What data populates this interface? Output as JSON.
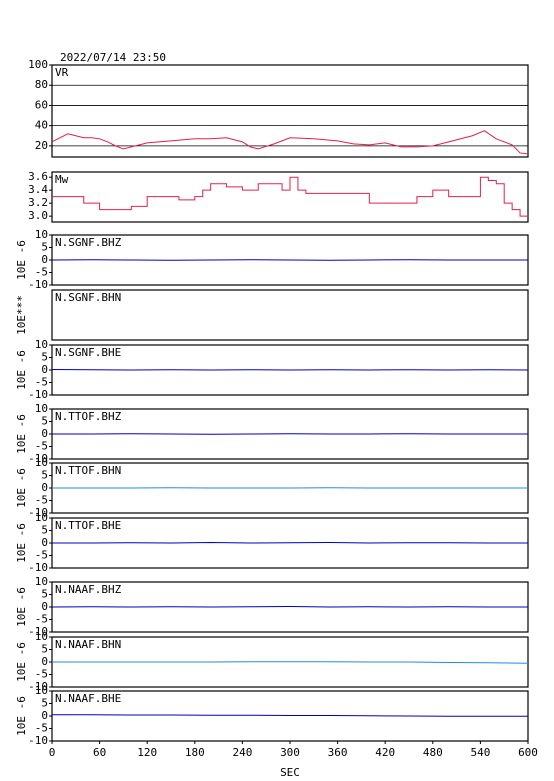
{
  "chart_data": [
    {
      "type": "line",
      "title": "2022/07/14 23:50",
      "label": "VR",
      "color": "#e0204a",
      "x": [
        0,
        10,
        20,
        30,
        40,
        50,
        60,
        70,
        80,
        90,
        100,
        120,
        150,
        180,
        200,
        220,
        240,
        250,
        260,
        280,
        300,
        330,
        360,
        380,
        400,
        420,
        440,
        460,
        480,
        500,
        520,
        530,
        545,
        560,
        570,
        580,
        590,
        600
      ],
      "values": [
        24,
        28,
        32,
        30,
        28,
        28,
        27,
        24,
        20,
        17,
        19,
        23,
        25,
        27,
        27,
        28,
        24,
        19,
        17,
        22,
        28,
        27,
        25,
        22,
        21,
        23,
        19,
        19,
        20,
        24,
        28,
        30,
        35,
        27,
        24,
        21,
        13,
        12
      ],
      "ylim": [
        9,
        100
      ],
      "yticks": [
        20,
        40,
        60,
        80,
        100
      ],
      "grid": true
    },
    {
      "type": "step",
      "label": "Mw",
      "color": "#e0204a",
      "x": [
        0,
        20,
        40,
        60,
        80,
        100,
        120,
        140,
        160,
        180,
        190,
        200,
        220,
        240,
        260,
        280,
        290,
        300,
        310,
        320,
        340,
        360,
        380,
        400,
        420,
        440,
        460,
        480,
        500,
        520,
        540,
        550,
        560,
        570,
        580,
        590,
        600
      ],
      "values": [
        3.3,
        3.3,
        3.2,
        3.1,
        3.1,
        3.15,
        3.3,
        3.3,
        3.25,
        3.3,
        3.4,
        3.5,
        3.45,
        3.4,
        3.5,
        3.5,
        3.4,
        3.6,
        3.4,
        3.35,
        3.35,
        3.35,
        3.35,
        3.2,
        3.2,
        3.2,
        3.3,
        3.4,
        3.3,
        3.3,
        3.6,
        3.55,
        3.5,
        3.2,
        3.1,
        3.0,
        3.0
      ],
      "ylim": [
        2.91,
        3.68
      ],
      "yticks": [
        {
          "value": 3,
          "label": "3.0"
        },
        3.2,
        3.4,
        3.6
      ]
    },
    {
      "type": "line",
      "label": "N.SGNF.BHZ",
      "ylabel": "10E -6",
      "color": "#0000c0",
      "x": [
        0,
        50,
        100,
        150,
        200,
        250,
        300,
        350,
        400,
        450,
        500,
        550,
        600
      ],
      "values": [
        0,
        0.1,
        0,
        -0.1,
        0,
        0.1,
        0,
        -0.1,
        0,
        0.1,
        0,
        0,
        0
      ],
      "ylim": [
        -10,
        10
      ],
      "yticks": [
        -10,
        -5,
        0,
        5,
        10
      ]
    },
    {
      "type": "line",
      "label": "N.SGNF.BHN",
      "ylabel": "10E***"
    },
    {
      "type": "line",
      "label": "N.SGNF.BHE",
      "ylabel": "10E -6",
      "color": "#0000c0",
      "x": [
        0,
        50,
        100,
        150,
        200,
        250,
        300,
        350,
        400,
        450,
        500,
        550,
        600
      ],
      "values": [
        0.2,
        0.1,
        0,
        0.1,
        0,
        0.1,
        0,
        0.1,
        0,
        0.1,
        0,
        0.1,
        0
      ],
      "ylim": [
        -10,
        10
      ],
      "yticks": [
        -10,
        -5,
        0,
        5,
        10
      ]
    },
    {
      "type": "line",
      "label": "N.TTOF.BHZ",
      "ylabel": "10E -6",
      "color": "#0000c0",
      "x": [
        0,
        50,
        100,
        150,
        200,
        250,
        300,
        350,
        400,
        450,
        500,
        550,
        600
      ],
      "values": [
        0,
        0,
        0.1,
        0,
        -0.1,
        0,
        0.1,
        0,
        0,
        0.1,
        0,
        0,
        0
      ],
      "ylim": [
        -10,
        10
      ],
      "yticks": [
        -10,
        -5,
        0,
        5,
        10
      ]
    },
    {
      "type": "line",
      "label": "N.TTOF.BHN",
      "ylabel": "10E -6",
      "color": "#2090d0",
      "x": [
        0,
        50,
        100,
        150,
        200,
        250,
        300,
        350,
        400,
        450,
        500,
        550,
        600
      ],
      "values": [
        0,
        0,
        0,
        0.1,
        0,
        0,
        0,
        0.1,
        0,
        0,
        0,
        0,
        0
      ],
      "ylim": [
        -10,
        10
      ],
      "yticks": [
        -10,
        -5,
        0,
        5,
        10
      ]
    },
    {
      "type": "line",
      "label": "N.TTOF.BHE",
      "ylabel": "10E -6",
      "color": "#0000c0",
      "x": [
        0,
        50,
        100,
        150,
        200,
        250,
        300,
        350,
        400,
        450,
        500,
        550,
        600
      ],
      "values": [
        0,
        0,
        0.1,
        0,
        0.2,
        0,
        0.1,
        0.2,
        0,
        0.1,
        0.1,
        0,
        0
      ],
      "ylim": [
        -10,
        10
      ],
      "yticks": [
        -10,
        -5,
        0,
        5,
        10
      ]
    },
    {
      "type": "line",
      "label": "N.NAAF.BHZ",
      "ylabel": "10E -6",
      "color": "#0000c0",
      "x": [
        0,
        50,
        100,
        150,
        200,
        250,
        300,
        350,
        400,
        450,
        500,
        550,
        600
      ],
      "values": [
        0,
        0.1,
        0,
        0.1,
        0,
        0.1,
        0.2,
        0,
        0.1,
        0,
        0.1,
        0,
        0
      ],
      "ylim": [
        -10,
        10
      ],
      "yticks": [
        -10,
        -5,
        0,
        5,
        10
      ]
    },
    {
      "type": "line",
      "label": "N.NAAF.BHN",
      "ylabel": "10E -6",
      "color": "#2090d0",
      "x": [
        0,
        50,
        100,
        150,
        200,
        250,
        300,
        350,
        400,
        450,
        500,
        550,
        600
      ],
      "values": [
        0,
        0,
        0,
        0,
        0,
        0.1,
        0.1,
        0.1,
        0,
        0,
        -0.2,
        -0.3,
        -0.5
      ],
      "ylim": [
        -10,
        10
      ],
      "yticks": [
        -10,
        -5,
        0,
        5,
        10
      ]
    },
    {
      "type": "line",
      "label": "N.NAAF.BHE",
      "ylabel": "10E -6",
      "color": "#0000c0",
      "x": [
        0,
        50,
        100,
        150,
        200,
        250,
        300,
        350,
        400,
        450,
        500,
        550,
        600
      ],
      "values": [
        0.5,
        0.5,
        0.4,
        0.4,
        0.3,
        0.3,
        0.2,
        0.2,
        0.1,
        0,
        -0.1,
        -0.1,
        -0.1
      ],
      "ylim": [
        -10,
        10
      ],
      "yticks": [
        -10,
        -5,
        0,
        5,
        10
      ],
      "xlim": [
        0,
        600
      ],
      "xticks": [
        0,
        60,
        120,
        180,
        240,
        300,
        360,
        420,
        480,
        540,
        600
      ],
      "xlabel": "SEC"
    }
  ]
}
